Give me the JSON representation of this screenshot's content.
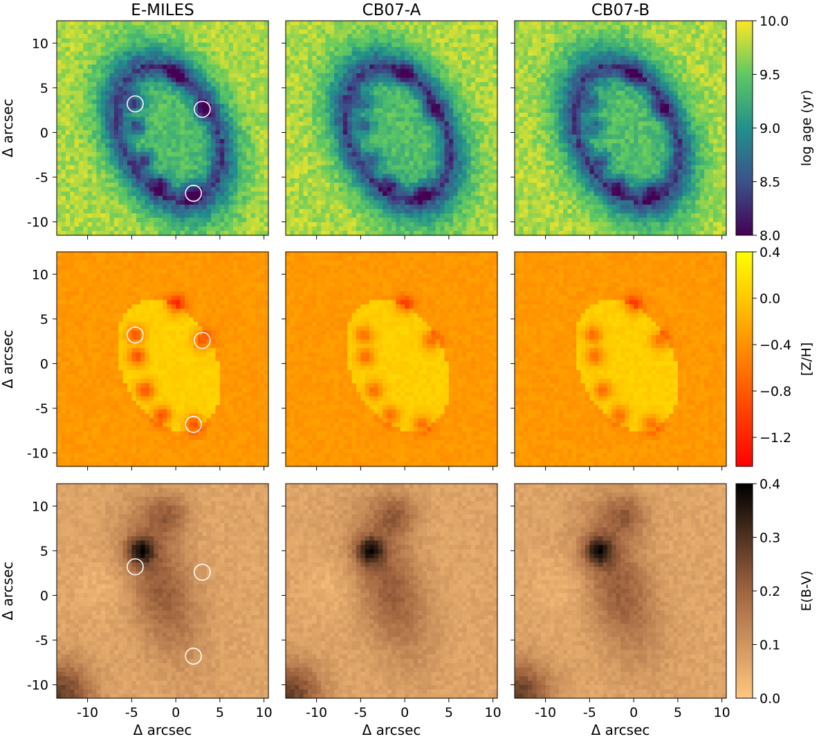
{
  "figure": {
    "column_titles": [
      "E-MILES",
      "CB07-A",
      "CB07-B"
    ],
    "axis_label": "Δ arcsec",
    "colors": {
      "axes": "#000000",
      "circle": "#ffffff",
      "background": "#ffffff"
    }
  },
  "chart_data": [
    {
      "type": "heatmap",
      "row": 0,
      "quantity": "log age (yr)",
      "colorbar": {
        "label": "log age (yr)",
        "range": [
          8.0,
          10.0
        ],
        "ticks": [
          "8.0",
          "8.5",
          "9.0",
          "9.5",
          "10.0"
        ],
        "colormap": "viridis"
      },
      "panels": [
        "E-MILES",
        "CB07-A",
        "CB07-B"
      ],
      "x_ticks": [
        "-10",
        "-5",
        "0",
        "5",
        "10"
      ],
      "xlim": [
        -13.5,
        10.5
      ],
      "y_ticks": [
        "10",
        "5",
        "0",
        "-5",
        "-10"
      ],
      "ylim": [
        -11.5,
        12.5
      ],
      "structure": {
        "background": 9.8,
        "ring": 8.9,
        "center": 9.4,
        "knots": 8.3
      },
      "marked_regions": [
        {
          "x": -4.6,
          "y": 3.2
        },
        {
          "x": 3.0,
          "y": 2.6
        },
        {
          "x": 2.0,
          "y": -6.8
        }
      ]
    },
    {
      "type": "heatmap",
      "row": 1,
      "quantity": "[Z/H]",
      "colorbar": {
        "label": "[Z/H]",
        "range": [
          -1.45,
          0.4
        ],
        "ticks": [
          "0.4",
          "0.0",
          "−0.4",
          "−0.8",
          "−1.2"
        ],
        "colormap": "autumn"
      },
      "panels": [
        "E-MILES",
        "CB07-A",
        "CB07-B"
      ],
      "x_ticks": [
        "-10",
        "-5",
        "0",
        "5",
        "10"
      ],
      "xlim": [
        -13.5,
        10.5
      ],
      "y_ticks": [
        "10",
        "5",
        "0",
        "-5",
        "-10"
      ],
      "ylim": [
        -11.5,
        12.5
      ],
      "structure": {
        "background": -0.35,
        "center": 0.05,
        "knots": -1.1
      },
      "marked_regions": [
        {
          "x": -4.6,
          "y": 3.2
        },
        {
          "x": 3.0,
          "y": 2.6
        },
        {
          "x": 2.0,
          "y": -6.8
        }
      ]
    },
    {
      "type": "heatmap",
      "row": 2,
      "quantity": "E(B-V)",
      "colorbar": {
        "label": "E(B-V)",
        "range": [
          0.0,
          0.4
        ],
        "ticks": [
          "0.4",
          "0.3",
          "0.2",
          "0.1",
          "0.0"
        ],
        "colormap": "copper_r"
      },
      "panels": [
        "E-MILES",
        "CB07-A",
        "CB07-B"
      ],
      "x_ticks": [
        "-10",
        "-5",
        "0",
        "5",
        "10"
      ],
      "xlim": [
        -13.5,
        10.5
      ],
      "y_ticks": [
        "10",
        "5",
        "0",
        "-5",
        "-10"
      ],
      "ylim": [
        -11.5,
        12.5
      ],
      "structure": {
        "background": 0.07,
        "dust_lane": 0.2,
        "peak": 0.37
      },
      "marked_regions": [
        {
          "x": -4.6,
          "y": 3.2
        },
        {
          "x": 3.0,
          "y": 2.6
        },
        {
          "x": 2.0,
          "y": -6.8
        }
      ]
    }
  ]
}
